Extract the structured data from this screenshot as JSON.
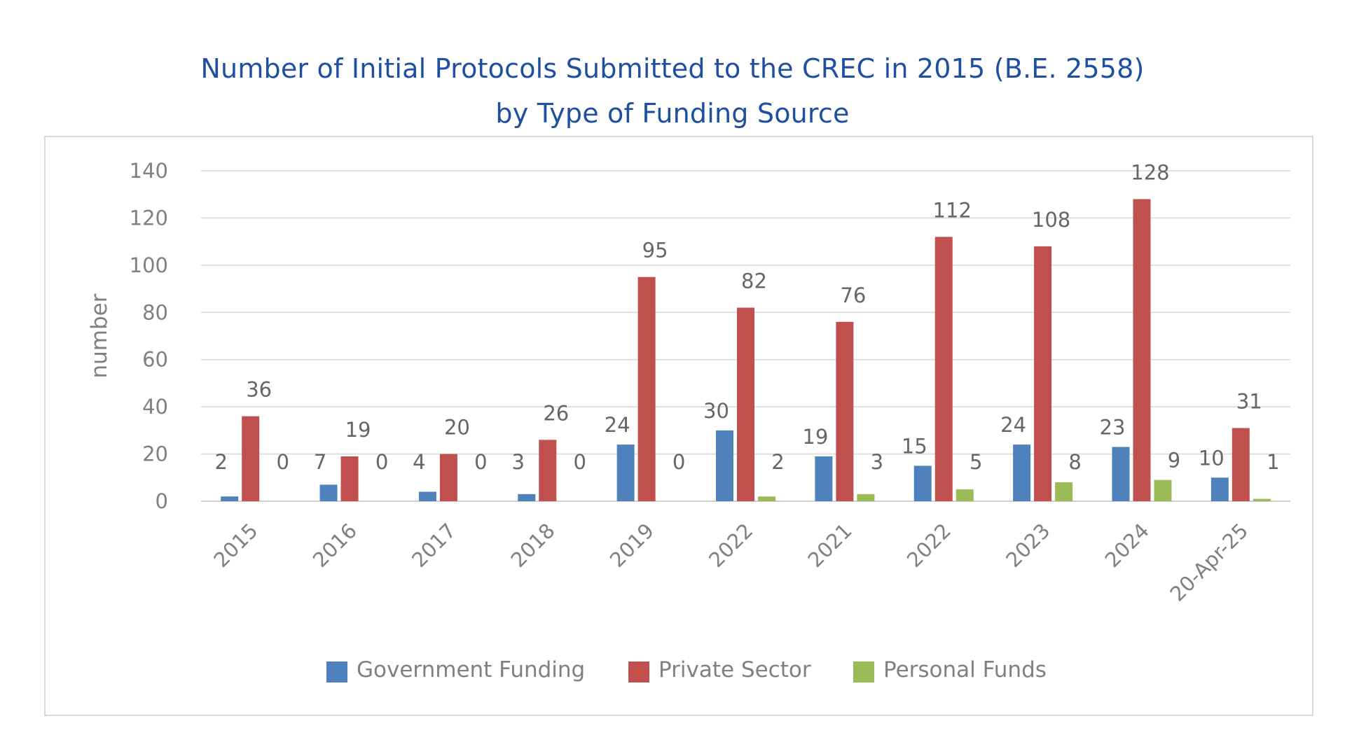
{
  "chart_data": {
    "type": "bar",
    "title_lines": [
      "Number of Initial Protocols Submitted to the CREC in 2015 (B.E. 2558)",
      "by Type of Funding Source"
    ],
    "xlabel": "",
    "ylabel": "number",
    "ylim": [
      0,
      140
    ],
    "yticks": [
      0,
      20,
      40,
      60,
      80,
      100,
      120,
      140
    ],
    "grid": true,
    "legend_position": "bottom",
    "categories": [
      "2015",
      "2016",
      "2017",
      "2018",
      "2019",
      "2022",
      "2021",
      "2022",
      "2023",
      "2024",
      "20-Apr-25"
    ],
    "series": [
      {
        "name": "Government Funding",
        "color": "#4f81bd",
        "values": [
          2,
          7,
          4,
          3,
          24,
          30,
          19,
          15,
          24,
          23,
          10
        ]
      },
      {
        "name": "Private Sector",
        "color": "#c0504d",
        "values": [
          36,
          19,
          20,
          26,
          95,
          82,
          76,
          112,
          108,
          128,
          31
        ]
      },
      {
        "name": "Personal Funds",
        "color": "#9bbb59",
        "values": [
          0,
          0,
          0,
          0,
          0,
          2,
          3,
          5,
          8,
          9,
          1
        ]
      }
    ]
  }
}
